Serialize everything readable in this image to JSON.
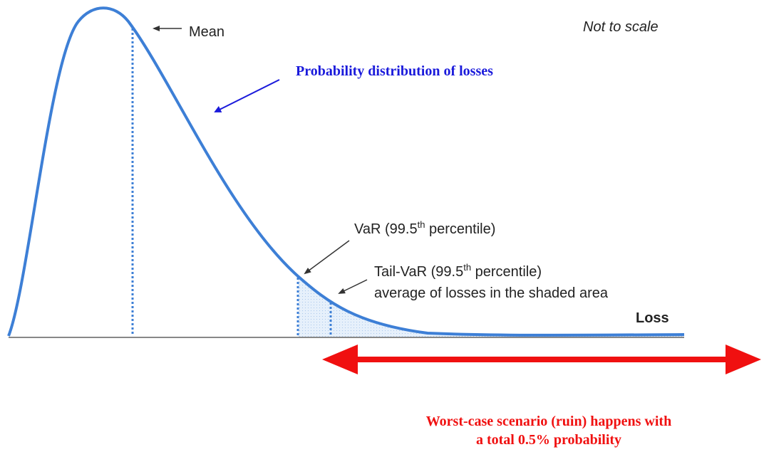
{
  "labels": {
    "mean": "Mean",
    "note": "Not to scale",
    "distribution": "Probability distribution of losses",
    "var": {
      "pre": "VaR (99.5",
      "sup": "th",
      "post": " percentile)"
    },
    "tail_var": {
      "pre": "Tail-VaR (99.5",
      "sup": "th",
      "post": " percentile)",
      "line2": "average of losses in the shaded area"
    },
    "axis": "Loss",
    "worst_case": [
      "Worst-case scenario (ruin) happens with",
      "a total 0.5% probability"
    ]
  }
}
